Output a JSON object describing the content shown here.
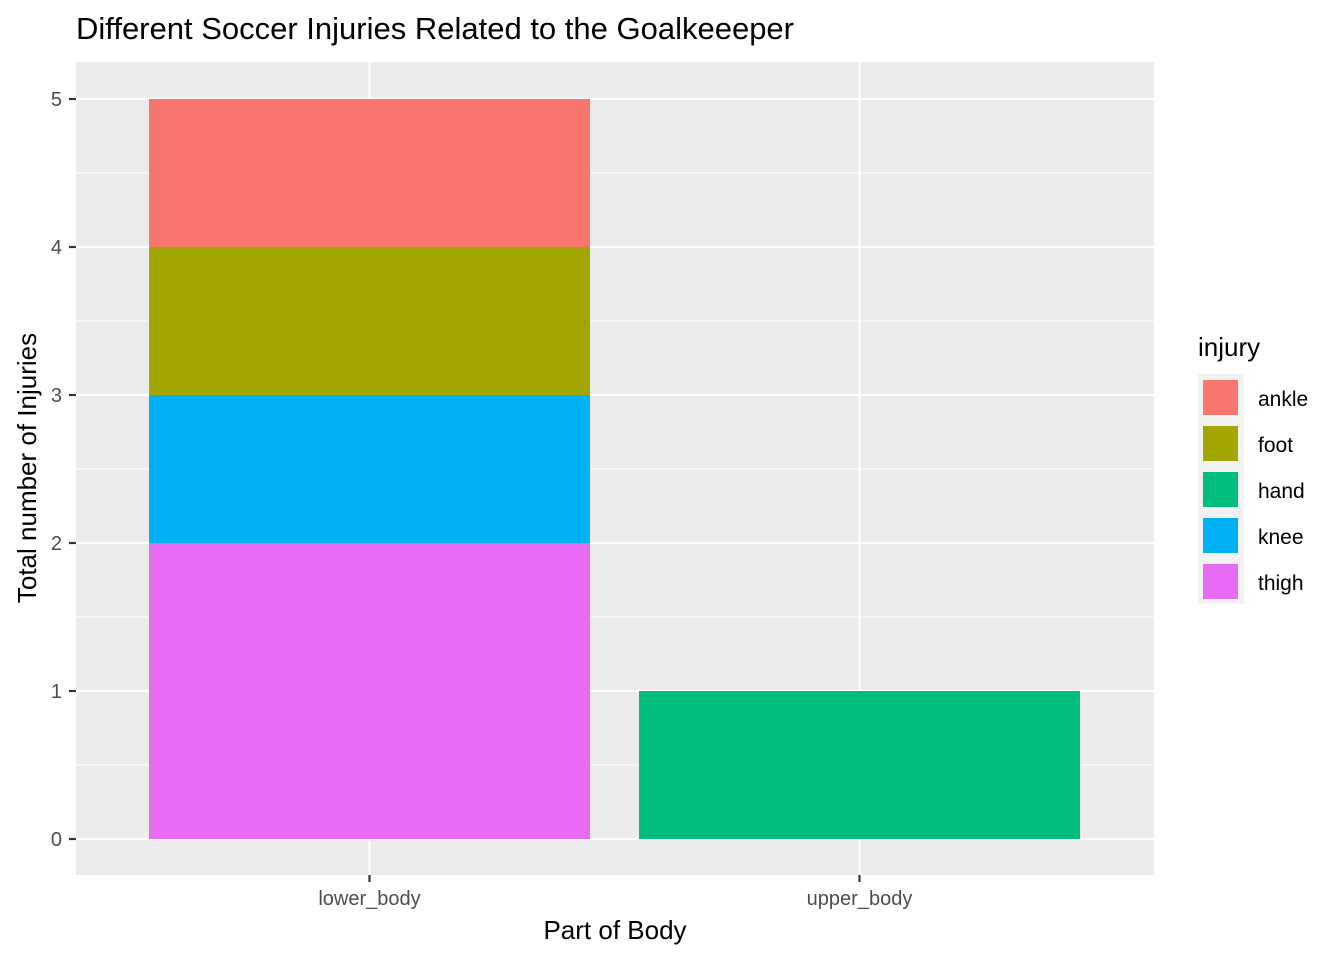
{
  "chart_data": {
    "type": "bar",
    "stacked": true,
    "title": "Different Soccer Injuries Related to the Goalkeeeper",
    "xlabel": "Part of Body",
    "ylabel": "Total number of Injuries",
    "categories": [
      "lower_body",
      "upper_body"
    ],
    "ylim": [
      0,
      5
    ],
    "yticks": [
      0,
      1,
      2,
      3,
      4,
      5
    ],
    "series": [
      {
        "name": "ankle",
        "color": "#F8766D",
        "values": [
          1,
          0
        ]
      },
      {
        "name": "foot",
        "color": "#A3A500",
        "values": [
          1,
          0
        ]
      },
      {
        "name": "hand",
        "color": "#00BF7D",
        "values": [
          0,
          1
        ]
      },
      {
        "name": "knee",
        "color": "#00B0F6",
        "values": [
          1,
          0
        ]
      },
      {
        "name": "thigh",
        "color": "#E76BF3",
        "values": [
          2,
          0
        ]
      }
    ],
    "stack_order_bottom_to_top": [
      "thigh",
      "knee",
      "hand",
      "foot",
      "ankle"
    ],
    "legend": {
      "title": "injury",
      "position": "right"
    },
    "grid": true,
    "panel_background": "#EBEBEB"
  }
}
